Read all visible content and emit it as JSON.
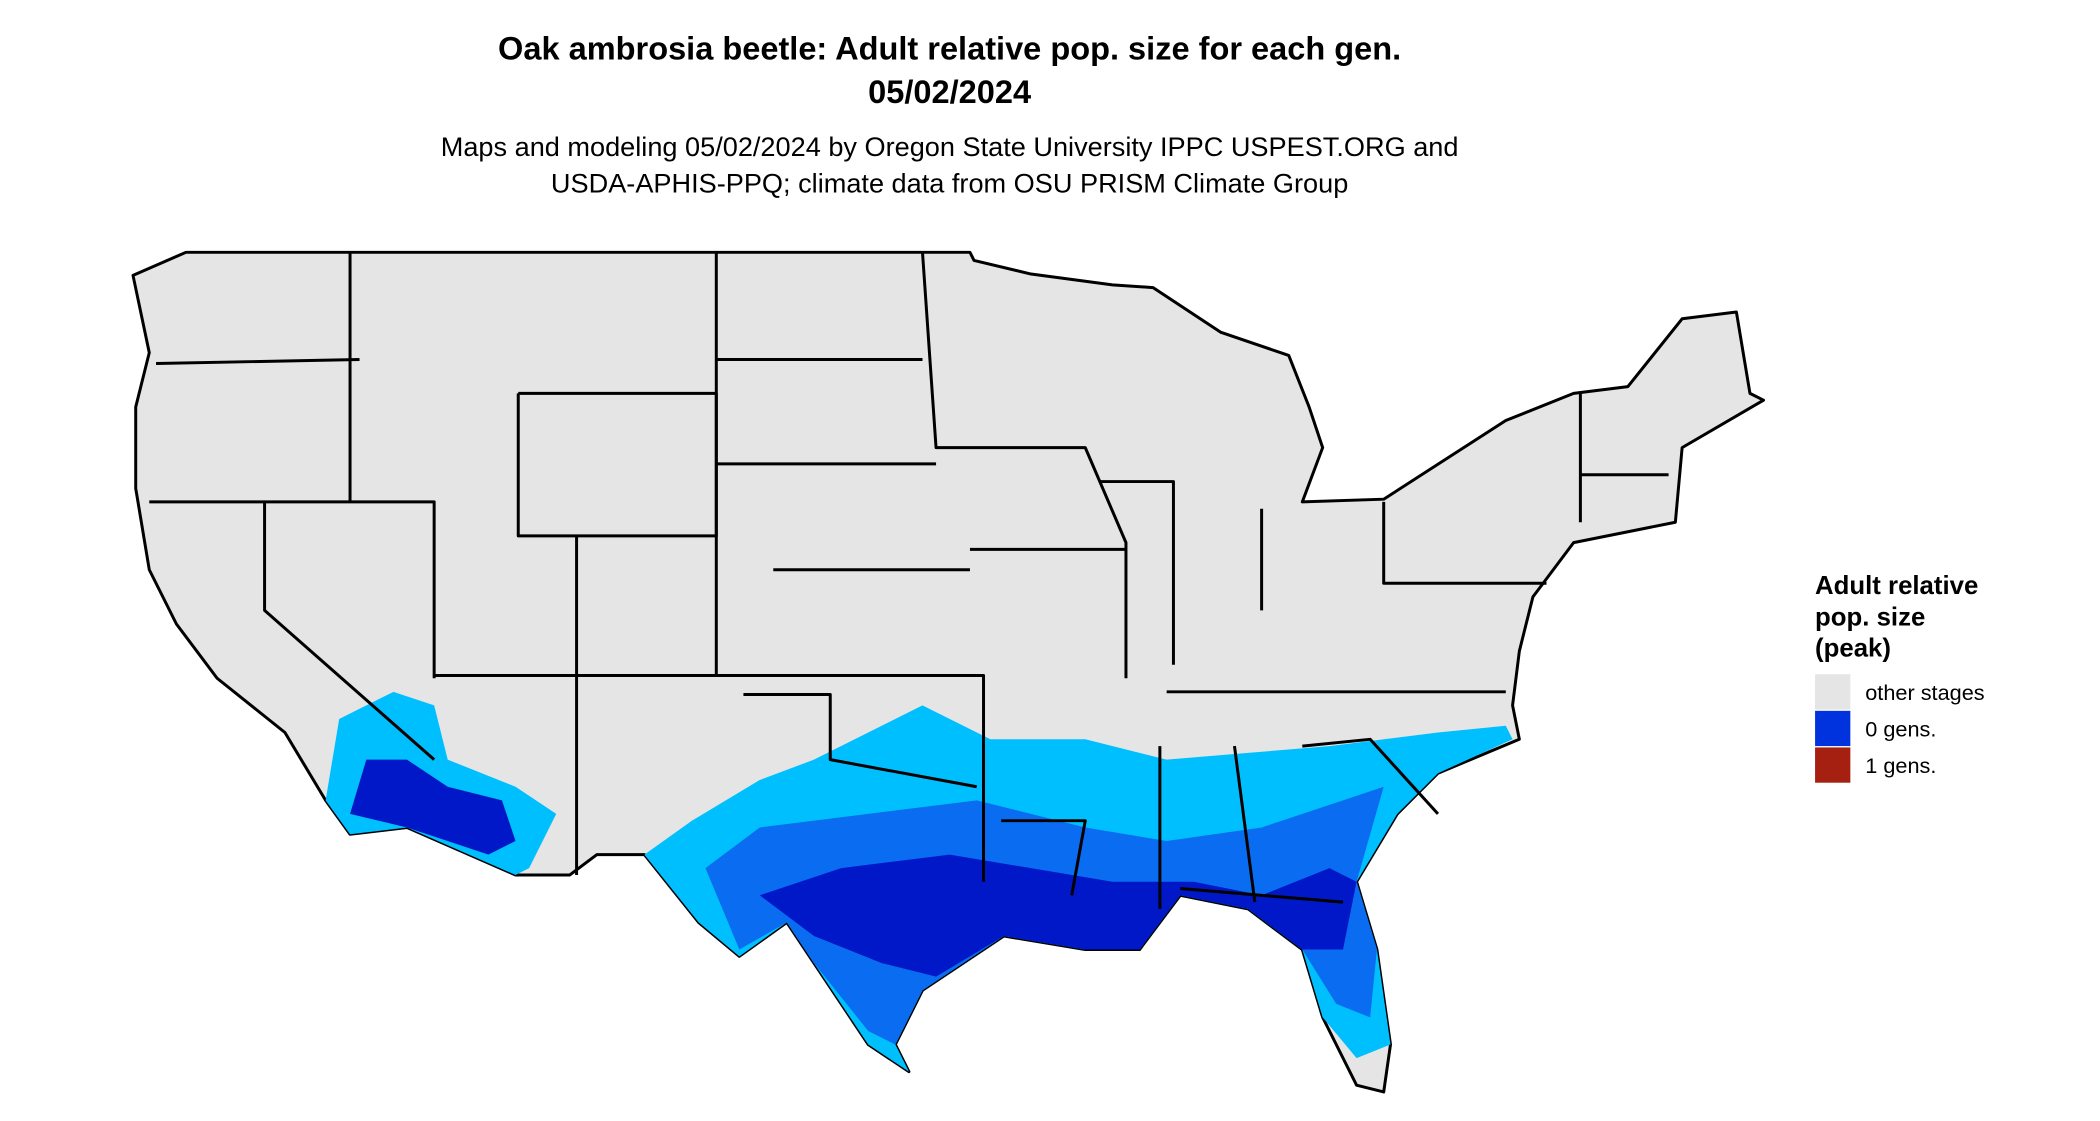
{
  "title": [
    "Oak ambrosia beetle: Adult relative pop. size for each gen.",
    "05/02/2024"
  ],
  "subtitle": [
    "Maps and modeling 05/02/2024 by Oregon State University IPPC USPEST.ORG and",
    "USDA-APHIS-PPQ; climate data from OSU PRISM Climate Group"
  ],
  "legend": {
    "title": [
      "Adult relative",
      "pop. size",
      "(peak)"
    ],
    "items": [
      {
        "label": "other stages",
        "color": "#e5e5e5"
      },
      {
        "label": "0 gens.",
        "color": "#0033dd"
      },
      {
        "label": "1 gens.",
        "color": "#a52010"
      }
    ]
  }
}
